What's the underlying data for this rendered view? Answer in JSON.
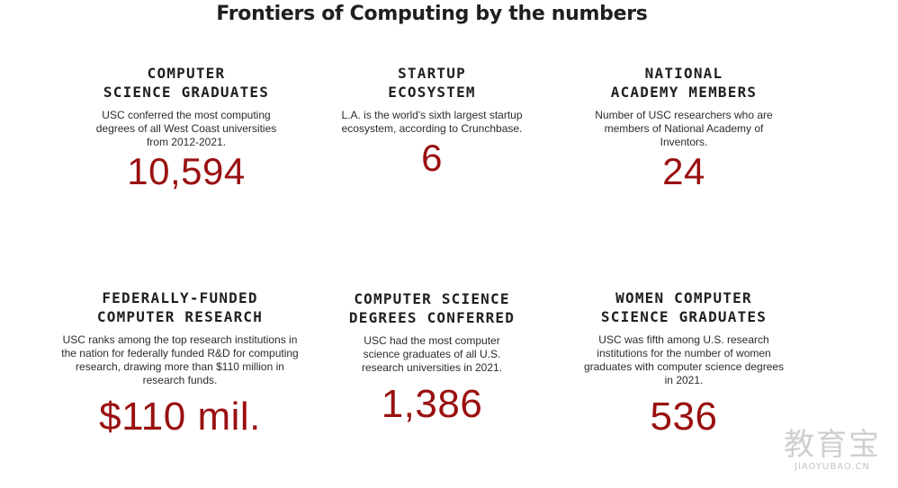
{
  "title": "Frontiers of Computing by the numbers",
  "stats": [
    {
      "heading_line1": "COMPUTER",
      "heading_line2": "SCIENCE GRADUATES",
      "description": "USC conferred the most computing degrees of all West Coast universities from 2012-2021.",
      "value": "10,594"
    },
    {
      "heading_line1": "STARTUP",
      "heading_line2": "ECOSYSTEM",
      "description": "L.A. is the world's sixth largest startup ecosystem, according to Crunchbase.",
      "value": "6"
    },
    {
      "heading_line1": "NATIONAL",
      "heading_line2": "ACADEMY MEMBERS",
      "description": "Number of USC researchers who are members of National Academy of Inventors.",
      "value": "24"
    },
    {
      "heading_line1": "FEDERALLY-FUNDED",
      "heading_line2": "COMPUTER RESEARCH",
      "description": "USC ranks among the top research institutions in the nation for federally funded R&D for computing research, drawing more than $110 million in research funds.",
      "value": "$110 mil."
    },
    {
      "heading_line1": "COMPUTER SCIENCE",
      "heading_line2": "DEGREES CONFERRED",
      "description": "USC had the most computer science graduates of all U.S. research universities in 2021.",
      "value": "1,386"
    },
    {
      "heading_line1": "WOMEN COMPUTER",
      "heading_line2": "SCIENCE GRADUATES",
      "description": "USC was fifth among U.S. research institutions for the number of women graduates with computer science degrees in 2021.",
      "value": "536"
    }
  ],
  "watermark": {
    "logo": "教育宝",
    "url": "JIAOYUBAO.CN"
  },
  "colors": {
    "accent": "#9a1010",
    "text": "#1f1f1f",
    "background": "#ffffff"
  }
}
